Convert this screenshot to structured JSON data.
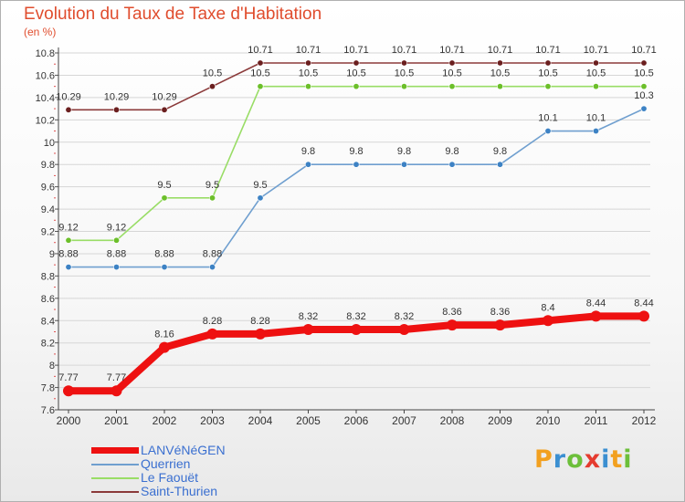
{
  "title": "Evolution du Taux de Taxe d'Habitation",
  "unit_label": "(en %)",
  "brand": {
    "letters": [
      "P",
      "r",
      "o",
      "x",
      "i",
      "t",
      "i"
    ],
    "colors": [
      "#f2a01f",
      "#3b8fd1",
      "#6cbf3a",
      "#e53b2f",
      "#3b8fd1",
      "#f2a01f",
      "#6cbf3a"
    ]
  },
  "chart_data": {
    "type": "line",
    "categories": [
      "2000",
      "2001",
      "2002",
      "2003",
      "2004",
      "2005",
      "2006",
      "2007",
      "2008",
      "2009",
      "2010",
      "2011",
      "2012"
    ],
    "ylim": [
      7.6,
      10.8
    ],
    "yticks": [
      {
        "value": 7.6,
        "label": "7.6"
      },
      {
        "value": 7.8,
        "label": "7.8"
      },
      {
        "value": 8.0,
        "label": "8"
      },
      {
        "value": 8.2,
        "label": "8.2"
      },
      {
        "value": 8.4,
        "label": "8.4"
      },
      {
        "value": 8.6,
        "label": "8.6"
      },
      {
        "value": 8.8,
        "label": "8.8"
      },
      {
        "value": 9.0,
        "label": "9"
      },
      {
        "value": 9.2,
        "label": "9.2"
      },
      {
        "value": 9.4,
        "label": "9.4"
      },
      {
        "value": 9.6,
        "label": "9.6"
      },
      {
        "value": 9.8,
        "label": "9.8"
      },
      {
        "value": 10.0,
        "label": "10"
      },
      {
        "value": 10.2,
        "label": "10.2"
      },
      {
        "value": 10.4,
        "label": "10.4"
      },
      {
        "value": 10.6,
        "label": "10.6"
      },
      {
        "value": 10.8,
        "label": "10.8"
      }
    ],
    "grid": "horizontal",
    "legend_position": "bottom-left",
    "series": [
      {
        "name": "LANVéNéGEN",
        "color": "#ee1111",
        "emphasis": true,
        "values": [
          7.77,
          7.77,
          8.16,
          8.28,
          8.28,
          8.32,
          8.32,
          8.32,
          8.36,
          8.36,
          8.4,
          8.44,
          8.44
        ],
        "labels": [
          "7.77",
          "7.77",
          "8.16",
          "8.28",
          "8.28",
          "8.32",
          "8.32",
          "8.32",
          "8.36",
          "8.36",
          "8.4",
          "8.44",
          "8.44"
        ]
      },
      {
        "name": "Querrien",
        "color": "#6f9fcf",
        "marker": "#3d82c4",
        "values": [
          8.88,
          8.88,
          8.88,
          8.88,
          9.5,
          9.8,
          9.8,
          9.8,
          9.8,
          9.8,
          10.1,
          10.1,
          10.3
        ],
        "labels": [
          "8.88",
          "8.88",
          "8.88",
          "8.88",
          "9.5",
          "9.8",
          "9.8",
          "9.8",
          "9.8",
          "9.8",
          "10.1",
          "10.1",
          "10.3"
        ]
      },
      {
        "name": "Le Faouët",
        "color": "#99dd66",
        "marker": "#6cbf2a",
        "values": [
          9.12,
          9.12,
          9.5,
          9.5,
          10.5,
          10.5,
          10.5,
          10.5,
          10.5,
          10.5,
          10.5,
          10.5,
          10.5
        ],
        "labels": [
          "9.12",
          "9.12",
          "9.5",
          "9.5",
          "10.5",
          "10.5",
          "10.5",
          "10.5",
          "10.5",
          "10.5",
          "10.5",
          "10.5",
          "10.5"
        ]
      },
      {
        "name": "Saint-Thurien",
        "color": "#8b3a3a",
        "marker": "#6b1f1f",
        "values": [
          10.29,
          10.29,
          10.29,
          10.5,
          10.71,
          10.71,
          10.71,
          10.71,
          10.71,
          10.71,
          10.71,
          10.71,
          10.71
        ],
        "labels": [
          "10.29",
          "10.29",
          "10.29",
          "10.5",
          "10.71",
          "10.71",
          "10.71",
          "10.71",
          "10.71",
          "10.71",
          "10.71",
          "10.71",
          "10.71"
        ]
      }
    ]
  }
}
